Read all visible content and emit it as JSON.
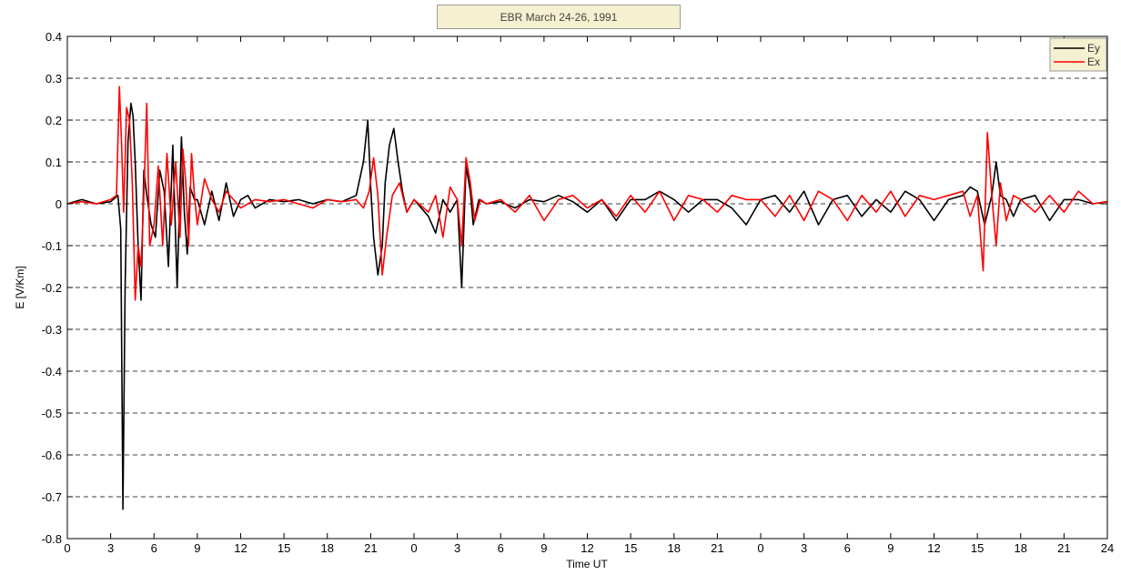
{
  "chart_data": {
    "type": "line",
    "title": "EBR March 24-26, 1991",
    "xlabel": "Time UT",
    "ylabel": "E [V/Km]",
    "xlim": [
      0,
      72
    ],
    "ylim": [
      -0.8,
      0.4
    ],
    "x_tick_values": [
      0,
      3,
      6,
      9,
      12,
      15,
      18,
      21,
      24,
      27,
      30,
      33,
      36,
      39,
      42,
      45,
      48,
      51,
      54,
      57,
      60,
      63,
      66,
      69,
      72
    ],
    "x_tick_labels": [
      "0",
      "3",
      "6",
      "9",
      "12",
      "15",
      "18",
      "21",
      "0",
      "3",
      "6",
      "9",
      "12",
      "15",
      "18",
      "21",
      "0",
      "3",
      "6",
      "9",
      "12",
      "15",
      "18",
      "21",
      "24"
    ],
    "y_ticks": [
      -0.8,
      -0.7,
      -0.6,
      -0.5,
      -0.4,
      -0.3,
      -0.2,
      -0.1,
      0,
      0.1,
      0.2,
      0.3,
      0.4
    ],
    "y_tick_labels": [
      "-0.8",
      "-0.7",
      "-0.6",
      "-0.5",
      "-0.4",
      "-0.3",
      "-0.2",
      "-0.1",
      "0",
      "0.1",
      "0.2",
      "0.3",
      "0.4"
    ],
    "grid": "horizontal dashed",
    "legend_position": "top-right",
    "series": [
      {
        "name": "Ey",
        "color": "#000000",
        "x": [
          0,
          1,
          2,
          3,
          3.5,
          3.7,
          3.85,
          4.0,
          4.2,
          4.4,
          4.55,
          4.7,
          4.9,
          5.1,
          5.3,
          5.5,
          5.8,
          6.1,
          6.4,
          6.7,
          7.0,
          7.3,
          7.6,
          7.9,
          8.1,
          8.3,
          8.5,
          8.8,
          9.0,
          9.5,
          10.0,
          10.5,
          11.0,
          11.5,
          12.0,
          12.5,
          13.0,
          14.0,
          15.0,
          16.0,
          17.0,
          18.0,
          19.0,
          20.0,
          20.5,
          20.8,
          21.0,
          21.2,
          21.5,
          21.8,
          22.0,
          22.3,
          22.6,
          22.9,
          23.2,
          23.5,
          24.0,
          25.0,
          25.5,
          26.0,
          26.5,
          27.0,
          27.3,
          27.6,
          27.9,
          28.1,
          28.5,
          29.0,
          30.0,
          31.0,
          32.0,
          33.0,
          34.0,
          35.0,
          36.0,
          37.0,
          38.0,
          39.0,
          40.0,
          41.0,
          42.0,
          43.0,
          44.0,
          45.0,
          46.0,
          47.0,
          48.0,
          49.0,
          50.0,
          51.0,
          52.0,
          53.0,
          54.0,
          55.0,
          56.0,
          57.0,
          58.0,
          59.0,
          60.0,
          61.0,
          62.0,
          62.5,
          63.0,
          63.5,
          64.0,
          64.3,
          64.6,
          65.0,
          65.5,
          66.0,
          67.0,
          68.0,
          69.0,
          70.0,
          71.0,
          72.0
        ],
        "values": [
          0,
          0.01,
          0,
          0.005,
          0.02,
          -0.06,
          -0.73,
          -0.2,
          0.15,
          0.24,
          0.21,
          0.1,
          -0.1,
          -0.23,
          0.08,
          0.02,
          -0.05,
          -0.08,
          0.08,
          0.03,
          -0.15,
          0.14,
          -0.2,
          0.16,
          -0.02,
          -0.12,
          0.04,
          0.01,
          0.01,
          -0.05,
          0.03,
          -0.04,
          0.05,
          -0.03,
          0.01,
          0.02,
          -0.01,
          0.01,
          0.005,
          0.01,
          0.0,
          0.01,
          0.005,
          0.02,
          0.1,
          0.2,
          0.04,
          -0.08,
          -0.17,
          -0.1,
          0.05,
          0.14,
          0.18,
          0.1,
          0.03,
          -0.02,
          0.01,
          -0.03,
          -0.07,
          0.01,
          -0.02,
          0.01,
          -0.2,
          0.09,
          0.03,
          -0.05,
          0.01,
          0.0,
          0.005,
          -0.01,
          0.01,
          0.005,
          0.02,
          0.005,
          -0.02,
          0.01,
          -0.04,
          0.01,
          0.01,
          0.03,
          0.01,
          -0.02,
          0.01,
          0.01,
          -0.01,
          -0.05,
          0.01,
          0.02,
          -0.02,
          0.03,
          -0.05,
          0.01,
          0.02,
          -0.03,
          0.01,
          -0.02,
          0.03,
          0.01,
          -0.04,
          0.01,
          0.02,
          0.04,
          0.03,
          -0.05,
          0.02,
          0.1,
          0.02,
          0.01,
          -0.03,
          0.01,
          0.02,
          -0.04,
          0.01,
          0.01,
          0.0,
          0.005
        ]
      },
      {
        "name": "Ex",
        "color": "#ff0000",
        "x": [
          0,
          1,
          2,
          3,
          3.4,
          3.6,
          3.75,
          3.9,
          4.1,
          4.3,
          4.5,
          4.7,
          4.9,
          5.1,
          5.3,
          5.5,
          5.7,
          6.0,
          6.3,
          6.6,
          6.9,
          7.2,
          7.5,
          7.8,
          8.0,
          8.2,
          8.4,
          8.6,
          8.8,
          9.0,
          9.5,
          10.0,
          10.5,
          11.0,
          11.5,
          12.0,
          13.0,
          14.0,
          15.0,
          16.0,
          17.0,
          18.0,
          19.0,
          20.0,
          20.5,
          20.9,
          21.2,
          21.5,
          21.8,
          22.1,
          22.5,
          23.0,
          23.5,
          24.0,
          25.0,
          25.5,
          26.0,
          26.5,
          27.0,
          27.3,
          27.6,
          27.9,
          28.2,
          28.6,
          29.0,
          30.0,
          31.0,
          32.0,
          33.0,
          34.0,
          35.0,
          36.0,
          37.0,
          38.0,
          39.0,
          40.0,
          41.0,
          42.0,
          43.0,
          44.0,
          45.0,
          46.0,
          47.0,
          48.0,
          49.0,
          50.0,
          51.0,
          52.0,
          53.0,
          54.0,
          55.0,
          56.0,
          57.0,
          58.0,
          59.0,
          60.0,
          61.0,
          62.0,
          62.5,
          63.0,
          63.4,
          63.7,
          64.0,
          64.3,
          64.6,
          65.0,
          65.5,
          66.0,
          67.0,
          68.0,
          69.0,
          70.0,
          71.0,
          72.0
        ],
        "values": [
          0,
          0.005,
          0,
          0.01,
          0.02,
          0.28,
          0.15,
          -0.02,
          0.23,
          0.2,
          0.05,
          -0.23,
          -0.1,
          -0.15,
          0.02,
          0.24,
          -0.1,
          -0.05,
          0.09,
          -0.1,
          0.12,
          -0.05,
          0.1,
          -0.08,
          0.13,
          0.05,
          -0.1,
          0.12,
          0.02,
          -0.05,
          0.06,
          0.01,
          -0.02,
          0.03,
          0.01,
          -0.01,
          0.01,
          0.005,
          0.01,
          0.0,
          -0.01,
          0.01,
          0.005,
          0.01,
          -0.01,
          0.03,
          0.11,
          0.02,
          -0.17,
          -0.08,
          0.02,
          0.05,
          -0.02,
          0.01,
          -0.02,
          0.02,
          -0.08,
          0.04,
          0.01,
          -0.1,
          0.11,
          0.05,
          -0.04,
          0.01,
          0.0,
          0.01,
          -0.02,
          0.02,
          -0.04,
          0.01,
          0.02,
          -0.01,
          0.01,
          -0.03,
          0.02,
          -0.02,
          0.03,
          -0.04,
          0.02,
          0.01,
          -0.02,
          0.02,
          0.01,
          0.01,
          -0.03,
          0.02,
          -0.04,
          0.03,
          0.01,
          -0.04,
          0.02,
          -0.02,
          0.03,
          -0.03,
          0.02,
          0.01,
          0.02,
          0.03,
          -0.03,
          0.02,
          -0.16,
          0.17,
          0.02,
          -0.1,
          0.05,
          -0.04,
          0.02,
          0.01,
          -0.02,
          0.02,
          -0.02,
          0.03,
          0.0,
          0.005
        ]
      }
    ]
  }
}
